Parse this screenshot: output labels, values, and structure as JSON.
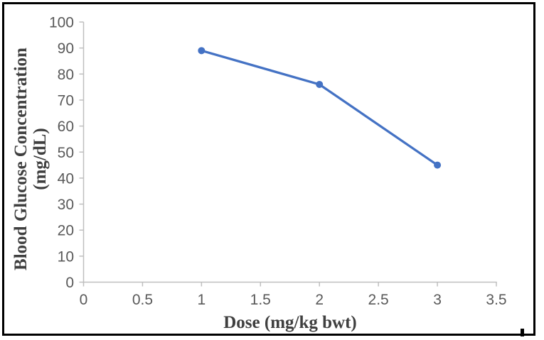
{
  "figure": {
    "background": "#FFFFFF",
    "border_color": "#000000"
  },
  "chart_data": {
    "type": "line",
    "x": [
      1,
      2,
      3
    ],
    "series": [
      {
        "name": "Blood glucose concentration",
        "values": [
          89,
          76,
          45
        ]
      }
    ],
    "title": "",
    "xlabel": "Dose (mg/kg bwt)",
    "ylabel": "Blood Glucose Concentration (mg/dL)",
    "ylabel_lines": [
      "Blood Glucose Concentration",
      "(mg/dL)"
    ],
    "xlim": [
      0,
      3.5
    ],
    "ylim": [
      0,
      100
    ],
    "xticks": [
      0,
      0.5,
      1,
      1.5,
      2,
      2.5,
      3,
      3.5
    ],
    "yticks": [
      0,
      10,
      20,
      30,
      40,
      50,
      60,
      70,
      80,
      90,
      100
    ],
    "grid": false,
    "legend": false,
    "marker": "circle",
    "colors": {
      "line": "#4472C4",
      "axis": "#BFBFBF",
      "tick_label": "#595959",
      "axis_title": "#3F3F3F"
    }
  }
}
